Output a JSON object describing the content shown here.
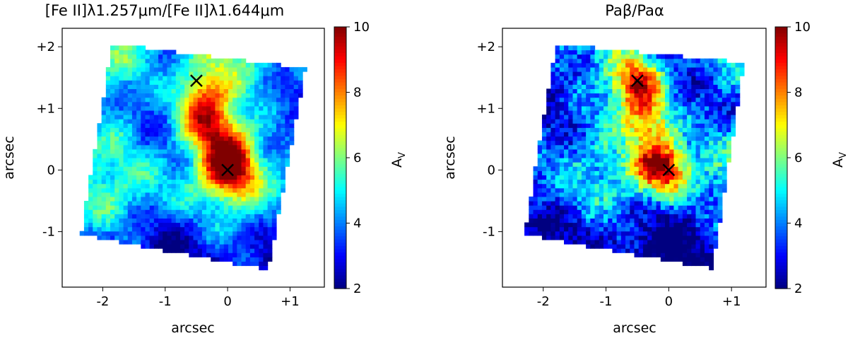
{
  "chart_data": [
    {
      "type": "heatmap",
      "title": "[Fe II]λ1.257μm/[Fe II]λ1.644μm",
      "xlabel": "arcsec",
      "ylabel": "arcsec",
      "colorbar_label": "A_V",
      "xlim": [
        -2.65,
        1.55
      ],
      "ylim": [
        -1.9,
        2.3
      ],
      "xticks": [
        {
          "value": -2,
          "label": "-2"
        },
        {
          "value": -1,
          "label": "-1"
        },
        {
          "value": 0,
          "label": "0"
        },
        {
          "value": 1,
          "label": "+1"
        }
      ],
      "yticks": [
        {
          "value": 2,
          "label": "+2"
        },
        {
          "value": 1,
          "label": "+1"
        },
        {
          "value": 0,
          "label": "0"
        },
        {
          "value": -1,
          "label": "-1"
        }
      ],
      "colorbar": {
        "min": 2,
        "max": 10,
        "ticks": [
          "2",
          "4",
          "6",
          "8",
          "10"
        ],
        "colormap": "jet"
      },
      "markers": [
        {
          "x": -0.5,
          "y": 1.45,
          "symbol": "x"
        },
        {
          "x": 0.0,
          "y": 0.0,
          "symbol": "x"
        }
      ],
      "field_corners": [
        [
          -1.85,
          2.05
        ],
        [
          1.25,
          1.65
        ],
        [
          0.65,
          -1.62
        ],
        [
          -2.35,
          -1.05
        ]
      ],
      "emission_peaks": [
        {
          "x": -0.35,
          "y": 1.3,
          "av": 7.6
        },
        {
          "x": -0.45,
          "y": 0.85,
          "av": 8.0
        },
        {
          "x": -0.05,
          "y": 0.55,
          "av": 7.2
        },
        {
          "x": 0.0,
          "y": 0.05,
          "av": 9.6
        }
      ],
      "background_av": 4.5
    },
    {
      "type": "heatmap",
      "title": "Paβ/Paα",
      "xlabel": "arcsec",
      "ylabel": "arcsec",
      "colorbar_label": "A_V",
      "xlim": [
        -2.65,
        1.55
      ],
      "ylim": [
        -1.9,
        2.3
      ],
      "xticks": [
        {
          "value": -2,
          "label": "-2"
        },
        {
          "value": -1,
          "label": "-1"
        },
        {
          "value": 0,
          "label": "0"
        },
        {
          "value": 1,
          "label": "+1"
        }
      ],
      "yticks": [
        {
          "value": 2,
          "label": "+2"
        },
        {
          "value": 1,
          "label": "+1"
        },
        {
          "value": 0,
          "label": "0"
        },
        {
          "value": -1,
          "label": "-1"
        }
      ],
      "colorbar": {
        "min": 2,
        "max": 10,
        "ticks": [
          "2",
          "4",
          "6",
          "8",
          "10"
        ],
        "colormap": "jet"
      },
      "markers": [
        {
          "x": -0.5,
          "y": 1.45,
          "symbol": "x"
        },
        {
          "x": 0.0,
          "y": 0.0,
          "symbol": "x"
        }
      ],
      "field_corners": [
        [
          -1.8,
          2.05
        ],
        [
          1.2,
          1.75
        ],
        [
          0.7,
          -1.6
        ],
        [
          -2.3,
          -1.05
        ]
      ],
      "emission_peaks": [
        {
          "x": -0.5,
          "y": 1.4,
          "av": 9.4
        },
        {
          "x": -0.3,
          "y": 0.8,
          "av": 8.2
        },
        {
          "x": -0.1,
          "y": 0.05,
          "av": 10.0
        }
      ],
      "background_av": 3.8
    }
  ]
}
